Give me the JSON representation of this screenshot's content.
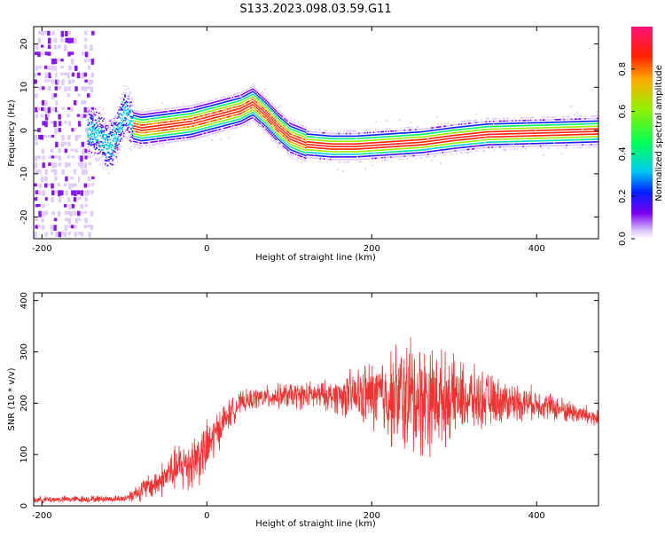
{
  "title": "S133.2023.098.03.59.G11",
  "chart_data": [
    {
      "type": "heatmap",
      "xlabel": "Height of straight line (km)",
      "ylabel": "Frequency (Hz)",
      "xlim": [
        -210,
        475
      ],
      "ylim": [
        -25,
        24
      ],
      "xticks": [
        -200,
        0,
        200,
        400
      ],
      "yticks": [
        -20,
        -10,
        0,
        10,
        20
      ],
      "ridge": {
        "x": [
          -140,
          -130,
          -120,
          -110,
          -100,
          -90,
          -80,
          -60,
          -40,
          -20,
          0,
          20,
          40,
          55,
          70,
          85,
          100,
          120,
          150,
          180,
          220,
          260,
          300,
          340,
          380,
          420,
          475
        ],
        "y": [
          0,
          -1,
          -4,
          -1,
          5,
          1,
          0.5,
          1,
          1.5,
          2,
          3,
          4,
          5,
          6.5,
          4,
          1,
          -1.5,
          -3,
          -3.5,
          -3.5,
          -3,
          -2.5,
          -1.5,
          -0.7,
          -0.5,
          -0.3,
          0
        ]
      },
      "colorbar": {
        "label": "Normalized spectral amplitude",
        "range": [
          0,
          1
        ],
        "ticks": [
          0.0,
          0.2,
          0.4,
          0.6,
          0.8
        ]
      }
    },
    {
      "type": "line",
      "xlabel": "Height of straight line (km)",
      "ylabel": "SNR (10 * v/v)",
      "xlim": [
        -210,
        475
      ],
      "ylim": [
        0,
        415
      ],
      "xticks": [
        -200,
        0,
        200,
        400
      ],
      "yticks": [
        0,
        100,
        200,
        300,
        400
      ],
      "color": "#ee3333",
      "envelope": {
        "x": [
          -210,
          -150,
          -100,
          -80,
          -60,
          -40,
          -20,
          0,
          20,
          40,
          60,
          100,
          150,
          200,
          250,
          300,
          350,
          400,
          450,
          475
        ],
        "mean": [
          12,
          13,
          14,
          30,
          45,
          70,
          85,
          110,
          165,
          200,
          210,
          215,
          215,
          215,
          210,
          210,
          205,
          200,
          180,
          170
        ],
        "amp": [
          8,
          8,
          8,
          25,
          35,
          50,
          70,
          65,
          40,
          25,
          25,
          30,
          35,
          80,
          150,
          90,
          55,
          35,
          25,
          25
        ]
      }
    }
  ]
}
